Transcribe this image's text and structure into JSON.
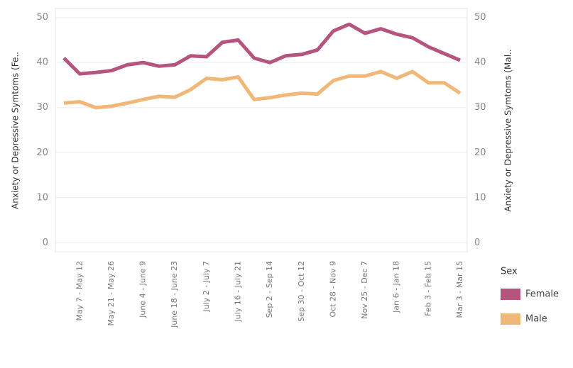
{
  "chart_data": {
    "type": "line",
    "y_axis_title": "Anxiety or Depressive Symtoms (Fe..",
    "y2_axis_title": "Anxiety or Depressive Symtoms (Mal..",
    "legend_title": "Sex",
    "categories": [
      null,
      "May 7 - May 12",
      null,
      "May 21 - May 26",
      null,
      "June 4 - June 9",
      null,
      "June 18 - June 23",
      null,
      "July 2 - July 7",
      null,
      "July 16 - July 21",
      null,
      "Sep 2 - Sep 14",
      null,
      "Sep 30 - Oct 12",
      null,
      "Oct 28 - Nov 9",
      null,
      "Nov 25 - Dec 7",
      null,
      "Jan 6 - Jan 18",
      null,
      "Feb 3 - Feb 15",
      null,
      "Mar 3 - Mar 15"
    ],
    "series": [
      {
        "name": "Female",
        "color": "#b5547f",
        "values": [
          41,
          37.5,
          37.8,
          38.2,
          39.5,
          40,
          39.2,
          39.5,
          41.5,
          41.3,
          44.5,
          45,
          41,
          40,
          41.5,
          41.8,
          42.8,
          47,
          48.5,
          46.5,
          47.5,
          46.3,
          45.5,
          43.5,
          42,
          40.5
        ]
      },
      {
        "name": "Male",
        "color": "#f0b776",
        "axis": "y2",
        "values": [
          31,
          31.3,
          30,
          30.3,
          31,
          31.8,
          32.5,
          32.3,
          34,
          36.5,
          36.2,
          36.8,
          31.8,
          32.2,
          32.8,
          33.2,
          33,
          36,
          37,
          37,
          38,
          36.5,
          38,
          35.5,
          35.5,
          33.2
        ]
      }
    ],
    "ylim": [
      -2,
      52
    ],
    "yticks": [
      0,
      10,
      20,
      30,
      40,
      50
    ],
    "y2lim": [
      -2,
      52
    ],
    "y2ticks": [
      0,
      10,
      20,
      30,
      40,
      50
    ],
    "grid": true
  }
}
